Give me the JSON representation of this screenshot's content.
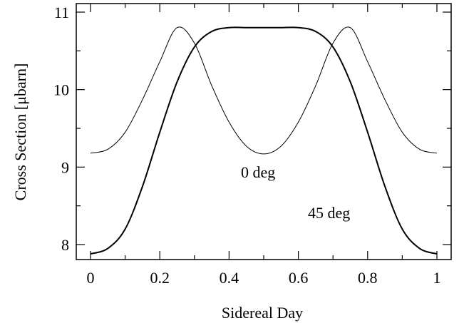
{
  "chart_data": {
    "type": "line",
    "xlabel": "Sidereal Day",
    "ylabel": "Cross Section [μbarn]",
    "xlim": [
      0,
      1
    ],
    "ylim": [
      7.75,
      11.0
    ],
    "xticks": [
      0,
      0.2,
      0.4,
      0.6,
      0.8,
      1
    ],
    "xtick_labels": [
      "0",
      "0.2",
      "0.4",
      "0.6",
      "0.8",
      "1"
    ],
    "yticks": [
      8,
      9,
      10,
      11
    ],
    "ytick_labels": [
      "8",
      "9",
      "10",
      "11"
    ],
    "grid": false,
    "series": [
      {
        "name": "0 deg",
        "x": [
          0,
          0.05,
          0.1,
          0.15,
          0.2,
          0.25,
          0.3,
          0.35,
          0.4,
          0.45,
          0.5,
          0.55,
          0.6,
          0.65,
          0.7,
          0.75,
          0.8,
          0.85,
          0.9,
          0.95,
          1.0
        ],
        "values": [
          9.18,
          9.23,
          9.45,
          9.87,
          10.36,
          10.8,
          10.6,
          10.05,
          9.58,
          9.27,
          9.17,
          9.27,
          9.58,
          10.05,
          10.6,
          10.8,
          10.36,
          9.87,
          9.45,
          9.23,
          9.18
        ]
      },
      {
        "name": "45 deg",
        "x": [
          0,
          0.05,
          0.1,
          0.15,
          0.2,
          0.25,
          0.3,
          0.35,
          0.4,
          0.45,
          0.5,
          0.55,
          0.6,
          0.65,
          0.7,
          0.75,
          0.8,
          0.85,
          0.9,
          0.95,
          1.0
        ],
        "values": [
          7.88,
          7.95,
          8.2,
          8.75,
          9.45,
          10.1,
          10.55,
          10.75,
          10.8,
          10.8,
          10.8,
          10.8,
          10.8,
          10.75,
          10.55,
          10.1,
          9.45,
          8.75,
          8.2,
          7.95,
          7.88
        ]
      }
    ]
  }
}
